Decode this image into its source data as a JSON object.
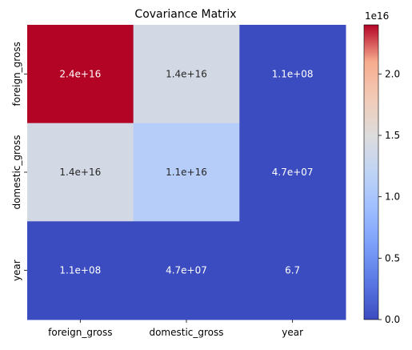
{
  "chart_data": {
    "type": "heatmap",
    "title": "Covariance Matrix",
    "rows": [
      "foreign_gross",
      "domestic_gross",
      "year"
    ],
    "columns": [
      "foreign_gross",
      "domestic_gross",
      "year"
    ],
    "values": [
      [
        2.4e+16,
        1.4e+16,
        110000000.0
      ],
      [
        1.4e+16,
        1.1e+16,
        47000000.0
      ],
      [
        110000000.0,
        47000000.0,
        6.7
      ]
    ],
    "annotations": [
      [
        "2.4e+16",
        "1.4e+16",
        "1.1e+08"
      ],
      [
        "1.4e+16",
        "1.1e+16",
        "4.7e+07"
      ],
      [
        "1.1e+08",
        "4.7e+07",
        "6.7"
      ]
    ],
    "colormap": "coolwarm",
    "colorbar": {
      "range": [
        0,
        2.4e+16
      ],
      "ticks": [
        0.0,
        0.5,
        1.0,
        1.5,
        2.0
      ],
      "tick_labels": [
        "0.0",
        "0.5",
        "1.0",
        "1.5",
        "2.0"
      ],
      "offset_label": "1e16"
    }
  }
}
